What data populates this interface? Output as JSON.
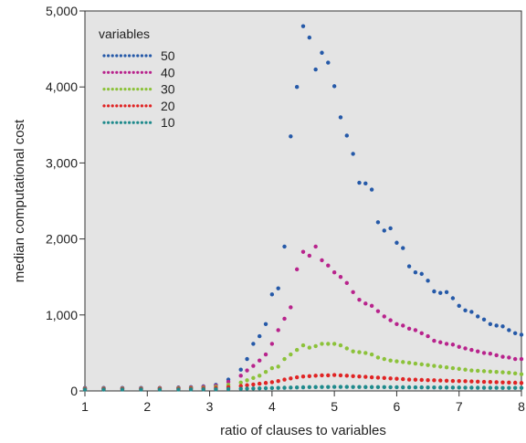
{
  "chart_data": {
    "type": "scatter",
    "xlabel": "ratio of clauses to variables",
    "ylabel": "median computational cost",
    "xlim": [
      1,
      8
    ],
    "ylim": [
      0,
      5000
    ],
    "x_ticks": [
      1,
      2,
      3,
      4,
      5,
      6,
      7,
      8
    ],
    "y_ticks": [
      0,
      1000,
      2000,
      3000,
      4000,
      5000
    ],
    "x_tick_labels": [
      "1",
      "2",
      "3",
      "4",
      "5",
      "6",
      "7",
      "8"
    ],
    "y_tick_labels": [
      "0",
      "1,000",
      "2,000",
      "3,000",
      "4,000",
      "5,000"
    ],
    "grid": false,
    "background": "#e4e4e4",
    "legend": {
      "title": "variables",
      "placement": "top-left"
    },
    "series": [
      {
        "name": "50",
        "color": "#2559a8",
        "points": [
          [
            1.0,
            40
          ],
          [
            1.3,
            40
          ],
          [
            1.6,
            40
          ],
          [
            1.9,
            40
          ],
          [
            2.2,
            40
          ],
          [
            2.5,
            45
          ],
          [
            2.7,
            50
          ],
          [
            2.9,
            60
          ],
          [
            3.1,
            80
          ],
          [
            3.3,
            150
          ],
          [
            3.5,
            280
          ],
          [
            3.6,
            420
          ],
          [
            3.7,
            620
          ],
          [
            3.8,
            720
          ],
          [
            3.9,
            880
          ],
          [
            4.0,
            1270
          ],
          [
            4.1,
            1350
          ],
          [
            4.2,
            1900
          ],
          [
            4.3,
            3350
          ],
          [
            4.4,
            4000
          ],
          [
            4.5,
            4800
          ],
          [
            4.6,
            4650
          ],
          [
            4.7,
            4230
          ],
          [
            4.8,
            4450
          ],
          [
            4.9,
            4320
          ],
          [
            5.0,
            4010
          ],
          [
            5.1,
            3600
          ],
          [
            5.2,
            3360
          ],
          [
            5.3,
            3120
          ],
          [
            5.4,
            2740
          ],
          [
            5.5,
            2730
          ],
          [
            5.6,
            2650
          ],
          [
            5.7,
            2220
          ],
          [
            5.8,
            2110
          ],
          [
            5.9,
            2140
          ],
          [
            6.0,
            1950
          ],
          [
            6.1,
            1880
          ],
          [
            6.2,
            1640
          ],
          [
            6.3,
            1560
          ],
          [
            6.4,
            1540
          ],
          [
            6.5,
            1450
          ],
          [
            6.6,
            1310
          ],
          [
            6.7,
            1290
          ],
          [
            6.8,
            1300
          ],
          [
            6.9,
            1220
          ],
          [
            7.0,
            1120
          ],
          [
            7.1,
            1060
          ],
          [
            7.2,
            1040
          ],
          [
            7.3,
            980
          ],
          [
            7.4,
            940
          ],
          [
            7.5,
            880
          ],
          [
            7.6,
            860
          ],
          [
            7.7,
            850
          ],
          [
            7.8,
            800
          ],
          [
            7.9,
            760
          ],
          [
            8.0,
            740
          ]
        ]
      },
      {
        "name": "40",
        "color": "#b8238c",
        "points": [
          [
            1.0,
            35
          ],
          [
            1.3,
            35
          ],
          [
            1.6,
            35
          ],
          [
            1.9,
            35
          ],
          [
            2.2,
            38
          ],
          [
            2.5,
            40
          ],
          [
            2.7,
            45
          ],
          [
            2.9,
            55
          ],
          [
            3.1,
            70
          ],
          [
            3.3,
            120
          ],
          [
            3.5,
            200
          ],
          [
            3.6,
            270
          ],
          [
            3.7,
            330
          ],
          [
            3.8,
            400
          ],
          [
            3.9,
            480
          ],
          [
            4.0,
            620
          ],
          [
            4.1,
            800
          ],
          [
            4.2,
            950
          ],
          [
            4.3,
            1100
          ],
          [
            4.4,
            1600
          ],
          [
            4.5,
            1830
          ],
          [
            4.6,
            1780
          ],
          [
            4.7,
            1900
          ],
          [
            4.8,
            1720
          ],
          [
            4.9,
            1650
          ],
          [
            5.0,
            1560
          ],
          [
            5.1,
            1500
          ],
          [
            5.2,
            1420
          ],
          [
            5.3,
            1300
          ],
          [
            5.4,
            1200
          ],
          [
            5.5,
            1150
          ],
          [
            5.6,
            1120
          ],
          [
            5.7,
            1050
          ],
          [
            5.8,
            980
          ],
          [
            5.9,
            930
          ],
          [
            6.0,
            880
          ],
          [
            6.1,
            860
          ],
          [
            6.2,
            820
          ],
          [
            6.3,
            800
          ],
          [
            6.4,
            760
          ],
          [
            6.5,
            720
          ],
          [
            6.6,
            660
          ],
          [
            6.7,
            640
          ],
          [
            6.8,
            620
          ],
          [
            6.9,
            610
          ],
          [
            7.0,
            580
          ],
          [
            7.1,
            560
          ],
          [
            7.2,
            540
          ],
          [
            7.3,
            520
          ],
          [
            7.4,
            500
          ],
          [
            7.5,
            490
          ],
          [
            7.6,
            470
          ],
          [
            7.7,
            450
          ],
          [
            7.8,
            440
          ],
          [
            7.9,
            420
          ],
          [
            8.0,
            420
          ]
        ]
      },
      {
        "name": "30",
        "color": "#8cc23a",
        "points": [
          [
            1.0,
            30
          ],
          [
            1.3,
            30
          ],
          [
            1.6,
            30
          ],
          [
            1.9,
            30
          ],
          [
            2.2,
            32
          ],
          [
            2.5,
            35
          ],
          [
            2.7,
            38
          ],
          [
            2.9,
            42
          ],
          [
            3.1,
            55
          ],
          [
            3.3,
            80
          ],
          [
            3.5,
            110
          ],
          [
            3.6,
            140
          ],
          [
            3.7,
            170
          ],
          [
            3.8,
            200
          ],
          [
            3.9,
            250
          ],
          [
            4.0,
            300
          ],
          [
            4.1,
            320
          ],
          [
            4.2,
            420
          ],
          [
            4.3,
            480
          ],
          [
            4.4,
            540
          ],
          [
            4.5,
            600
          ],
          [
            4.6,
            570
          ],
          [
            4.7,
            590
          ],
          [
            4.8,
            620
          ],
          [
            4.9,
            620
          ],
          [
            5.0,
            620
          ],
          [
            5.1,
            600
          ],
          [
            5.2,
            560
          ],
          [
            5.3,
            520
          ],
          [
            5.4,
            510
          ],
          [
            5.5,
            500
          ],
          [
            5.6,
            480
          ],
          [
            5.7,
            440
          ],
          [
            5.8,
            420
          ],
          [
            5.9,
            400
          ],
          [
            6.0,
            390
          ],
          [
            6.1,
            380
          ],
          [
            6.2,
            370
          ],
          [
            6.3,
            360
          ],
          [
            6.4,
            350
          ],
          [
            6.5,
            340
          ],
          [
            6.6,
            330
          ],
          [
            6.7,
            320
          ],
          [
            6.8,
            310
          ],
          [
            6.9,
            300
          ],
          [
            7.0,
            290
          ],
          [
            7.1,
            280
          ],
          [
            7.2,
            270
          ],
          [
            7.3,
            265
          ],
          [
            7.4,
            260
          ],
          [
            7.5,
            255
          ],
          [
            7.6,
            250
          ],
          [
            7.7,
            245
          ],
          [
            7.8,
            240
          ],
          [
            7.9,
            230
          ],
          [
            8.0,
            220
          ]
        ]
      },
      {
        "name": "20",
        "color": "#e02424",
        "points": [
          [
            1.0,
            25
          ],
          [
            1.3,
            25
          ],
          [
            1.6,
            25
          ],
          [
            1.9,
            25
          ],
          [
            2.2,
            26
          ],
          [
            2.5,
            28
          ],
          [
            2.7,
            30
          ],
          [
            2.9,
            32
          ],
          [
            3.1,
            38
          ],
          [
            3.3,
            50
          ],
          [
            3.5,
            65
          ],
          [
            3.6,
            75
          ],
          [
            3.7,
            85
          ],
          [
            3.8,
            95
          ],
          [
            3.9,
            105
          ],
          [
            4.0,
            115
          ],
          [
            4.1,
            130
          ],
          [
            4.2,
            150
          ],
          [
            4.3,
            165
          ],
          [
            4.4,
            180
          ],
          [
            4.5,
            190
          ],
          [
            4.6,
            195
          ],
          [
            4.7,
            200
          ],
          [
            4.8,
            205
          ],
          [
            4.9,
            205
          ],
          [
            5.0,
            210
          ],
          [
            5.1,
            205
          ],
          [
            5.2,
            200
          ],
          [
            5.3,
            195
          ],
          [
            5.4,
            190
          ],
          [
            5.5,
            185
          ],
          [
            5.6,
            180
          ],
          [
            5.7,
            175
          ],
          [
            5.8,
            170
          ],
          [
            5.9,
            165
          ],
          [
            6.0,
            160
          ],
          [
            6.1,
            155
          ],
          [
            6.2,
            150
          ],
          [
            6.3,
            148
          ],
          [
            6.4,
            145
          ],
          [
            6.5,
            142
          ],
          [
            6.6,
            140
          ],
          [
            6.7,
            138
          ],
          [
            6.8,
            135
          ],
          [
            6.9,
            132
          ],
          [
            7.0,
            130
          ],
          [
            7.1,
            128
          ],
          [
            7.2,
            125
          ],
          [
            7.3,
            122
          ],
          [
            7.4,
            120
          ],
          [
            7.5,
            118
          ],
          [
            7.6,
            115
          ],
          [
            7.7,
            112
          ],
          [
            7.8,
            110
          ],
          [
            7.9,
            108
          ],
          [
            8.0,
            105
          ]
        ]
      },
      {
        "name": "10",
        "color": "#1f8a8c",
        "points": [
          [
            1.0,
            18
          ],
          [
            1.3,
            18
          ],
          [
            1.6,
            18
          ],
          [
            1.9,
            18
          ],
          [
            2.2,
            18
          ],
          [
            2.5,
            19
          ],
          [
            2.7,
            20
          ],
          [
            2.9,
            21
          ],
          [
            3.1,
            22
          ],
          [
            3.3,
            25
          ],
          [
            3.5,
            28
          ],
          [
            3.6,
            30
          ],
          [
            3.7,
            32
          ],
          [
            3.8,
            34
          ],
          [
            3.9,
            36
          ],
          [
            4.0,
            38
          ],
          [
            4.1,
            40
          ],
          [
            4.2,
            42
          ],
          [
            4.3,
            44
          ],
          [
            4.4,
            46
          ],
          [
            4.5,
            48
          ],
          [
            4.6,
            50
          ],
          [
            4.7,
            51
          ],
          [
            4.8,
            52
          ],
          [
            4.9,
            52
          ],
          [
            5.0,
            53
          ],
          [
            5.1,
            53
          ],
          [
            5.2,
            53
          ],
          [
            5.3,
            52
          ],
          [
            5.4,
            52
          ],
          [
            5.5,
            51
          ],
          [
            5.6,
            51
          ],
          [
            5.7,
            50
          ],
          [
            5.8,
            50
          ],
          [
            5.9,
            49
          ],
          [
            6.0,
            49
          ],
          [
            6.1,
            48
          ],
          [
            6.2,
            48
          ],
          [
            6.3,
            47
          ],
          [
            6.4,
            47
          ],
          [
            6.5,
            46
          ],
          [
            6.6,
            46
          ],
          [
            6.7,
            45
          ],
          [
            6.8,
            45
          ],
          [
            6.9,
            44
          ],
          [
            7.0,
            44
          ],
          [
            7.1,
            43
          ],
          [
            7.2,
            43
          ],
          [
            7.3,
            42
          ],
          [
            7.4,
            42
          ],
          [
            7.5,
            41
          ],
          [
            7.6,
            41
          ],
          [
            7.7,
            40
          ],
          [
            7.8,
            40
          ],
          [
            7.9,
            40
          ],
          [
            8.0,
            40
          ]
        ]
      }
    ]
  }
}
